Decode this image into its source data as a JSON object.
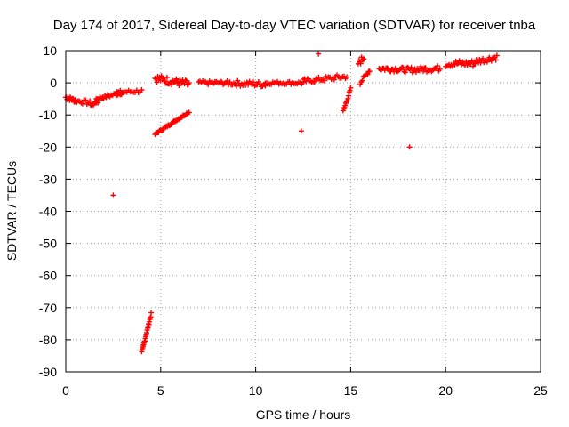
{
  "chart_data": {
    "type": "scatter",
    "title": "Day 174 of 2017, Sidereal Day-to-day VTEC variation (SDTVAR) for receiver tnba",
    "xlabel": "GPS time / hours",
    "ylabel": "SDTVAR / TECUs",
    "xlim": [
      0,
      25
    ],
    "ylim": [
      -90,
      10
    ],
    "xticks": [
      0,
      5,
      10,
      15,
      20,
      25
    ],
    "yticks": [
      -90,
      -80,
      -70,
      -60,
      -50,
      -40,
      -30,
      -20,
      -10,
      0,
      10
    ],
    "grid": true,
    "marker": "+",
    "color": "#ff0000",
    "segments": [
      {
        "x0": 0.0,
        "x1": 0.5,
        "y0": -4.5,
        "y1": -5.5,
        "n": 16,
        "spread": 1.4
      },
      {
        "x0": 0.5,
        "x1": 1.5,
        "y0": -5.5,
        "y1": -6.5,
        "n": 14,
        "spread": 1.4
      },
      {
        "x0": 1.3,
        "x1": 1.7,
        "y0": -7.0,
        "y1": -6.0,
        "n": 6,
        "spread": 0.8
      },
      {
        "x0": 1.6,
        "x1": 3.0,
        "y0": -5.0,
        "y1": -3.0,
        "n": 22,
        "spread": 1.2
      },
      {
        "x0": 2.7,
        "x1": 4.0,
        "y0": -3.0,
        "y1": -2.5,
        "n": 16,
        "spread": 1.2
      },
      {
        "x0": 4.0,
        "x1": 4.5,
        "y0": -84.0,
        "y1": -72.0,
        "n": 22,
        "spread": 0.8
      },
      {
        "x0": 4.7,
        "x1": 6.5,
        "y0": -16.0,
        "y1": -9.0,
        "n": 40,
        "spread": 0.6
      },
      {
        "x0": 4.7,
        "x1": 6.5,
        "y0": 1.5,
        "y1": -0.5,
        "n": 38,
        "spread": 2.4
      },
      {
        "x0": 7.0,
        "x1": 8.5,
        "y0": 0.0,
        "y1": 0.0,
        "n": 22,
        "spread": 1.2
      },
      {
        "x0": 8.5,
        "x1": 10.5,
        "y0": 0.0,
        "y1": -0.5,
        "n": 30,
        "spread": 1.8
      },
      {
        "x0": 10.5,
        "x1": 12.5,
        "y0": 0.0,
        "y1": 0.0,
        "n": 26,
        "spread": 1.0
      },
      {
        "x0": 12.5,
        "x1": 14.8,
        "y0": 0.5,
        "y1": 2.0,
        "n": 32,
        "spread": 1.6
      },
      {
        "x0": 14.6,
        "x1": 15.0,
        "y0": -9.0,
        "y1": -2.0,
        "n": 12,
        "spread": 1.0
      },
      {
        "x0": 15.4,
        "x1": 15.7,
        "y0": 6.0,
        "y1": 8.0,
        "n": 8,
        "spread": 2.2
      },
      {
        "x0": 15.5,
        "x1": 16.0,
        "y0": 0.0,
        "y1": 4.0,
        "n": 10,
        "spread": 1.2
      },
      {
        "x0": 16.5,
        "x1": 18.0,
        "y0": 4.5,
        "y1": 4.0,
        "n": 26,
        "spread": 1.6
      },
      {
        "x0": 18.0,
        "x1": 19.7,
        "y0": 4.0,
        "y1": 4.5,
        "n": 28,
        "spread": 1.8
      },
      {
        "x0": 20.0,
        "x1": 21.5,
        "y0": 6.0,
        "y1": 6.0,
        "n": 26,
        "spread": 2.2
      },
      {
        "x0": 21.5,
        "x1": 22.7,
        "y0": 6.5,
        "y1": 8.0,
        "n": 22,
        "spread": 1.8
      }
    ],
    "outliers": [
      {
        "x": 2.5,
        "y": -35.0
      },
      {
        "x": 12.4,
        "y": -15.0
      },
      {
        "x": 13.3,
        "y": 9.0
      },
      {
        "x": 18.1,
        "y": -20.0
      }
    ]
  }
}
